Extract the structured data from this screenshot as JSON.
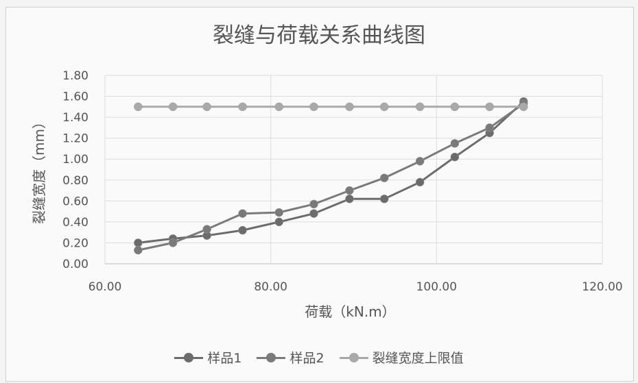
{
  "chart_data": {
    "type": "line",
    "title": "裂缝与荷载关系曲线图",
    "xlabel": "荷载（kN.m）",
    "ylabel": "裂缝宽度（mm）",
    "xlim": [
      60,
      120
    ],
    "ylim": [
      0,
      1.8
    ],
    "x_ticks": [
      "60.00",
      "80.00",
      "100.00",
      "120.00"
    ],
    "y_ticks": [
      "0.00",
      "0.20",
      "0.40",
      "0.60",
      "0.80",
      "1.00",
      "1.20",
      "1.40",
      "1.60",
      "1.80"
    ],
    "grid": true,
    "legend_position": "bottom",
    "series": [
      {
        "name": "样品1",
        "color": "#6b6b6b",
        "x": [
          64.0,
          68.2,
          72.3,
          76.6,
          81.0,
          85.2,
          89.5,
          93.7,
          98.0,
          102.2,
          106.4,
          110.5
        ],
        "y": [
          0.2,
          0.24,
          0.27,
          0.32,
          0.4,
          0.48,
          0.62,
          0.62,
          0.78,
          1.02,
          1.25,
          1.55
        ]
      },
      {
        "name": "样品2",
        "color": "#7a7a7a",
        "x": [
          64.0,
          68.2,
          72.3,
          76.6,
          81.0,
          85.2,
          89.5,
          93.7,
          98.0,
          102.2,
          106.4,
          110.5
        ],
        "y": [
          0.13,
          0.2,
          0.33,
          0.48,
          0.49,
          0.57,
          0.7,
          0.82,
          0.98,
          1.15,
          1.3,
          1.53
        ]
      },
      {
        "name": "裂缝宽度上限值",
        "color": "#a9a9a9",
        "x": [
          64.0,
          68.2,
          72.3,
          76.6,
          81.0,
          85.2,
          89.5,
          93.7,
          98.0,
          102.2,
          106.4,
          110.5
        ],
        "y": [
          1.5,
          1.5,
          1.5,
          1.5,
          1.5,
          1.5,
          1.5,
          1.5,
          1.5,
          1.5,
          1.5,
          1.5
        ]
      }
    ]
  }
}
